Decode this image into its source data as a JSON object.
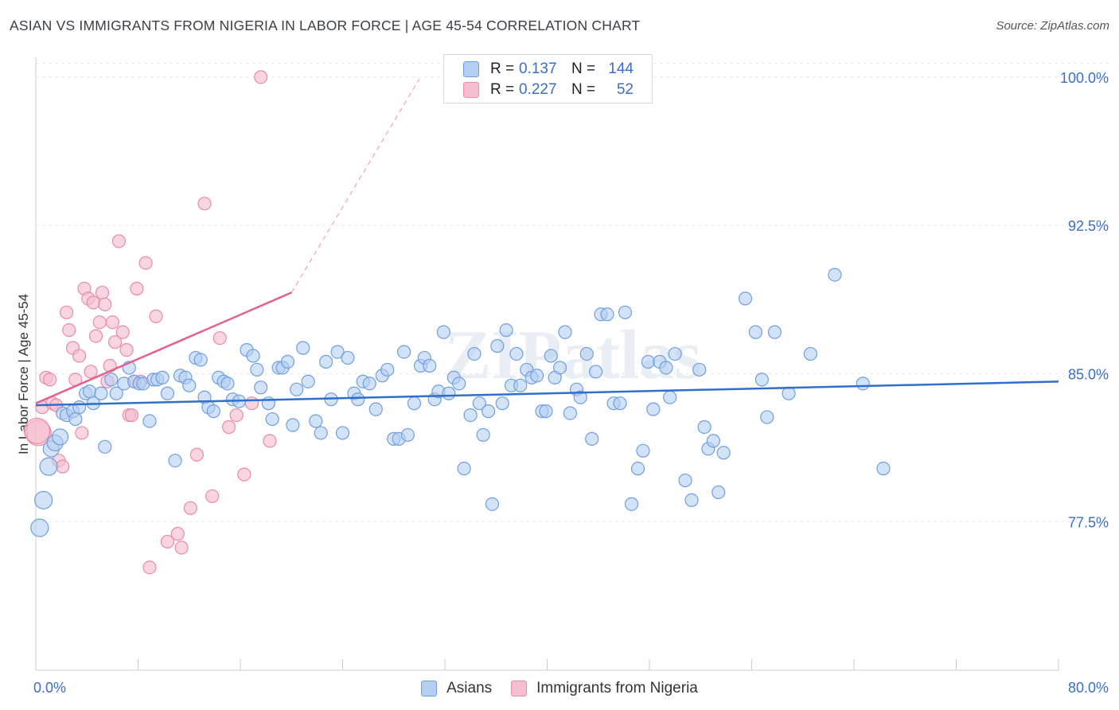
{
  "title": "ASIAN VS IMMIGRANTS FROM NIGERIA IN LABOR FORCE | AGE 45-54 CORRELATION CHART",
  "source": "Source: ZipAtlas.com",
  "watermark": "ZIPatlas",
  "legend_top": [
    {
      "r_label": "R =",
      "r_value": "0.137",
      "n_label": "N =",
      "n_value": "144"
    },
    {
      "r_label": "R =",
      "r_value": "0.227",
      "n_label": "N =",
      "n_value": "52"
    }
  ],
  "legend_bottom": [
    "Asians",
    "Immigrants from Nigeria"
  ],
  "colors": {
    "asians_fill": "#b4cff2",
    "asians_stroke": "#6f9ee0",
    "asians_line": "#2f6fcb",
    "nigeria_fill": "#f6bfd0",
    "nigeria_stroke": "#e88aa8",
    "nigeria_line": "#e2618d",
    "tick_text": "#3a6fc4",
    "grid": "#e6e6e6"
  },
  "chart_data": {
    "type": "scatter",
    "xlabel": "",
    "ylabel": "In Labor Force | Age 45-54",
    "x_tick_labels": [
      "0.0%",
      "80.0%"
    ],
    "y_tick_labels": [
      "100.0%",
      "92.5%",
      "85.0%",
      "77.5%"
    ],
    "y_ticks": [
      100.0,
      92.5,
      85.0,
      77.5
    ],
    "xlim": [
      0,
      80
    ],
    "ylim": [
      70.0,
      101.0
    ],
    "grid": true,
    "legend_position": "top-center",
    "series": [
      {
        "name": "Asians",
        "trend": {
          "x0": 0,
          "y0": 83.4,
          "x1": 80,
          "y1": 84.6
        },
        "points": [
          [
            0.3,
            77.2
          ],
          [
            0.6,
            78.6
          ],
          [
            1.0,
            80.3
          ],
          [
            1.2,
            81.2
          ],
          [
            1.5,
            81.5
          ],
          [
            1.9,
            81.8
          ],
          [
            2.1,
            83.0
          ],
          [
            2.4,
            82.9
          ],
          [
            2.9,
            83.1
          ],
          [
            3.1,
            82.7
          ],
          [
            3.4,
            83.3
          ],
          [
            3.9,
            84.0
          ],
          [
            4.2,
            84.1
          ],
          [
            4.5,
            83.5
          ],
          [
            5.1,
            84.0
          ],
          [
            5.4,
            81.3
          ],
          [
            5.9,
            84.7
          ],
          [
            6.3,
            84.0
          ],
          [
            6.9,
            84.5
          ],
          [
            7.3,
            85.3
          ],
          [
            7.7,
            84.6
          ],
          [
            8.1,
            84.5
          ],
          [
            8.4,
            84.5
          ],
          [
            8.9,
            82.6
          ],
          [
            9.2,
            84.7
          ],
          [
            9.5,
            84.7
          ],
          [
            9.9,
            84.8
          ],
          [
            10.3,
            84.0
          ],
          [
            10.9,
            80.6
          ],
          [
            11.3,
            84.9
          ],
          [
            11.7,
            84.8
          ],
          [
            12.0,
            84.4
          ],
          [
            12.5,
            85.8
          ],
          [
            12.9,
            85.7
          ],
          [
            13.2,
            83.8
          ],
          [
            13.5,
            83.3
          ],
          [
            13.9,
            83.1
          ],
          [
            14.3,
            84.8
          ],
          [
            14.7,
            84.6
          ],
          [
            15.0,
            84.5
          ],
          [
            15.4,
            83.7
          ],
          [
            15.9,
            83.6
          ],
          [
            16.5,
            86.2
          ],
          [
            17.0,
            85.9
          ],
          [
            17.3,
            85.2
          ],
          [
            17.6,
            84.3
          ],
          [
            18.2,
            83.5
          ],
          [
            18.5,
            82.7
          ],
          [
            19.0,
            85.3
          ],
          [
            19.3,
            85.3
          ],
          [
            19.7,
            85.6
          ],
          [
            20.1,
            82.4
          ],
          [
            20.4,
            84.2
          ],
          [
            20.9,
            86.3
          ],
          [
            21.3,
            84.6
          ],
          [
            21.9,
            82.6
          ],
          [
            22.3,
            82.0
          ],
          [
            22.7,
            85.6
          ],
          [
            23.1,
            83.7
          ],
          [
            23.6,
            86.1
          ],
          [
            24.0,
            82.0
          ],
          [
            24.4,
            85.8
          ],
          [
            24.9,
            84.0
          ],
          [
            25.2,
            83.7
          ],
          [
            25.6,
            84.6
          ],
          [
            26.1,
            84.5
          ],
          [
            26.6,
            83.2
          ],
          [
            27.1,
            84.9
          ],
          [
            27.5,
            85.2
          ],
          [
            28.0,
            81.7
          ],
          [
            28.4,
            81.7
          ],
          [
            28.8,
            86.1
          ],
          [
            29.1,
            81.9
          ],
          [
            29.6,
            83.5
          ],
          [
            30.1,
            85.4
          ],
          [
            30.4,
            85.8
          ],
          [
            30.8,
            85.4
          ],
          [
            31.2,
            83.7
          ],
          [
            31.5,
            84.1
          ],
          [
            31.9,
            87.1
          ],
          [
            32.3,
            84.0
          ],
          [
            32.7,
            84.8
          ],
          [
            33.1,
            84.5
          ],
          [
            33.5,
            80.2
          ],
          [
            34.0,
            82.9
          ],
          [
            34.3,
            86.0
          ],
          [
            34.7,
            83.5
          ],
          [
            35.0,
            81.9
          ],
          [
            35.4,
            83.1
          ],
          [
            35.7,
            78.4
          ],
          [
            36.1,
            86.4
          ],
          [
            36.5,
            83.5
          ],
          [
            36.8,
            87.2
          ],
          [
            37.2,
            84.4
          ],
          [
            37.6,
            86.0
          ],
          [
            37.9,
            84.4
          ],
          [
            38.4,
            85.2
          ],
          [
            38.8,
            84.8
          ],
          [
            39.2,
            84.9
          ],
          [
            39.6,
            83.1
          ],
          [
            39.9,
            83.1
          ],
          [
            40.3,
            85.9
          ],
          [
            40.6,
            84.8
          ],
          [
            41.0,
            85.3
          ],
          [
            41.4,
            87.1
          ],
          [
            41.8,
            83.0
          ],
          [
            42.3,
            84.2
          ],
          [
            42.6,
            83.8
          ],
          [
            43.1,
            86.0
          ],
          [
            43.5,
            81.7
          ],
          [
            43.8,
            85.1
          ],
          [
            44.2,
            88.0
          ],
          [
            44.7,
            88.0
          ],
          [
            45.2,
            83.5
          ],
          [
            45.7,
            83.5
          ],
          [
            46.1,
            88.1
          ],
          [
            46.6,
            78.4
          ],
          [
            47.1,
            80.2
          ],
          [
            47.5,
            81.1
          ],
          [
            47.9,
            85.6
          ],
          [
            48.3,
            83.2
          ],
          [
            48.8,
            85.6
          ],
          [
            49.3,
            85.3
          ],
          [
            49.6,
            83.8
          ],
          [
            50.0,
            86.0
          ],
          [
            50.8,
            79.6
          ],
          [
            51.3,
            78.6
          ],
          [
            51.9,
            85.2
          ],
          [
            52.3,
            82.3
          ],
          [
            52.6,
            81.2
          ],
          [
            53.0,
            81.6
          ],
          [
            53.4,
            79.0
          ],
          [
            53.8,
            81.0
          ],
          [
            55.5,
            88.8
          ],
          [
            56.3,
            87.1
          ],
          [
            56.8,
            84.7
          ],
          [
            57.2,
            82.8
          ],
          [
            57.8,
            87.1
          ],
          [
            58.9,
            84.0
          ],
          [
            60.6,
            86.0
          ],
          [
            62.5,
            90.0
          ],
          [
            64.7,
            84.5
          ],
          [
            66.3,
            80.2
          ]
        ]
      },
      {
        "name": "Immigrants from Nigeria",
        "trend": {
          "x0": 0,
          "y0": 83.5,
          "x1": 20,
          "y1": 89.1,
          "dash_to_x": 30,
          "dash_to_y": 99.9
        },
        "points": [
          [
            0.2,
            82.0
          ],
          [
            0.5,
            83.3
          ],
          [
            0.8,
            84.8
          ],
          [
            1.1,
            84.7
          ],
          [
            1.3,
            83.5
          ],
          [
            1.6,
            83.4
          ],
          [
            1.8,
            80.6
          ],
          [
            2.1,
            80.3
          ],
          [
            2.4,
            88.1
          ],
          [
            2.6,
            87.2
          ],
          [
            2.9,
            86.3
          ],
          [
            3.1,
            84.7
          ],
          [
            3.4,
            85.9
          ],
          [
            3.6,
            82.0
          ],
          [
            3.8,
            89.3
          ],
          [
            4.1,
            88.8
          ],
          [
            4.3,
            85.1
          ],
          [
            4.5,
            88.6
          ],
          [
            4.7,
            86.9
          ],
          [
            5.0,
            87.6
          ],
          [
            5.2,
            89.1
          ],
          [
            5.4,
            88.5
          ],
          [
            5.6,
            84.6
          ],
          [
            5.8,
            85.4
          ],
          [
            6.0,
            87.6
          ],
          [
            6.2,
            86.6
          ],
          [
            6.5,
            91.7
          ],
          [
            6.8,
            87.1
          ],
          [
            7.1,
            86.2
          ],
          [
            7.3,
            82.9
          ],
          [
            7.5,
            82.9
          ],
          [
            7.7,
            84.6
          ],
          [
            7.9,
            89.3
          ],
          [
            8.2,
            84.6
          ],
          [
            8.6,
            90.6
          ],
          [
            8.9,
            75.2
          ],
          [
            9.4,
            87.9
          ],
          [
            10.3,
            76.5
          ],
          [
            11.1,
            76.9
          ],
          [
            11.4,
            76.2
          ],
          [
            12.1,
            78.2
          ],
          [
            12.6,
            80.9
          ],
          [
            13.2,
            93.6
          ],
          [
            13.8,
            78.8
          ],
          [
            14.4,
            86.8
          ],
          [
            15.1,
            82.3
          ],
          [
            15.7,
            82.9
          ],
          [
            16.3,
            79.9
          ],
          [
            16.9,
            83.5
          ],
          [
            17.6,
            100.0
          ],
          [
            18.3,
            81.6
          ],
          [
            0.1,
            82.1
          ]
        ]
      }
    ]
  }
}
